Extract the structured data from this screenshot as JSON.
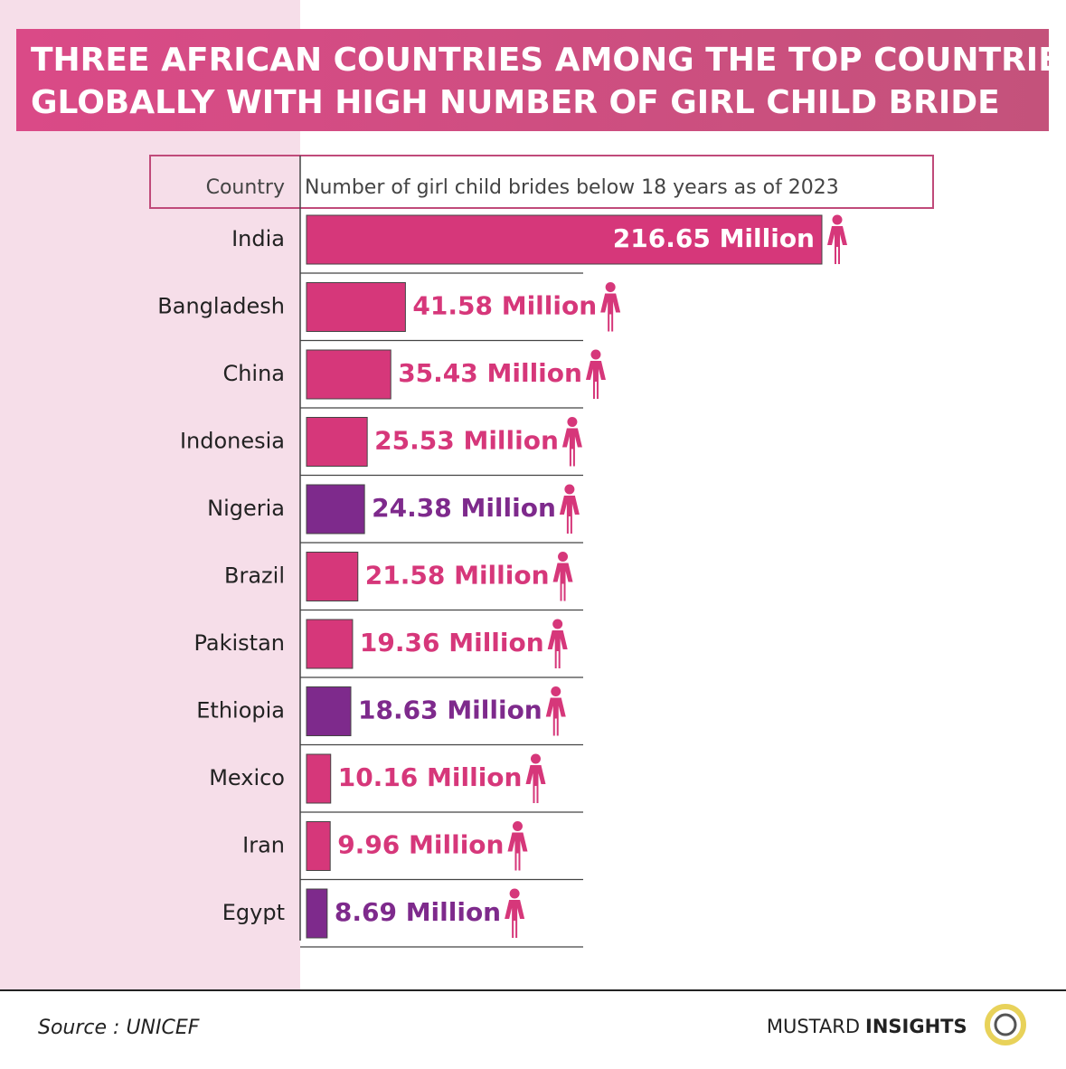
{
  "chart_data": {
    "type": "bar",
    "title": [
      "THREE AFRICAN COUNTRIES AMONG THE TOP COUNTRIES",
      "GLOBALLY WITH HIGH NUMBER OF GIRL CHILD BRIDE"
    ],
    "category_header": "Country",
    "value_header": "Number of girl child brides below 18 years as of 2023",
    "categories": [
      "India",
      "Bangladesh",
      "China",
      "Indonesia",
      "Nigeria",
      "Brazil",
      "Pakistan",
      "Ethiopia",
      "Mexico",
      "Iran",
      "Egypt"
    ],
    "values": [
      216.65,
      41.58,
      35.43,
      25.53,
      24.38,
      21.58,
      19.36,
      18.63,
      10.16,
      9.96,
      8.69
    ],
    "value_labels": [
      "216.65 Million",
      "41.58 Million",
      "35.43 Million",
      "25.53 Million",
      "24.38 Million",
      "21.58 Million",
      "19.36 Million",
      "18.63 Million",
      "10.16 Million",
      "9.96 Million",
      "8.69 Million"
    ],
    "colors": [
      "#d6377a",
      "#d6377a",
      "#d6377a",
      "#d6377a",
      "#7e2a8c",
      "#d6377a",
      "#d6377a",
      "#7e2a8c",
      "#d6377a",
      "#d6377a",
      "#7e2a8c"
    ]
  },
  "footer": {
    "source": "Source :  UNICEF",
    "brand": "MUSTARD",
    "brand_bold": "INSIGHTS"
  }
}
